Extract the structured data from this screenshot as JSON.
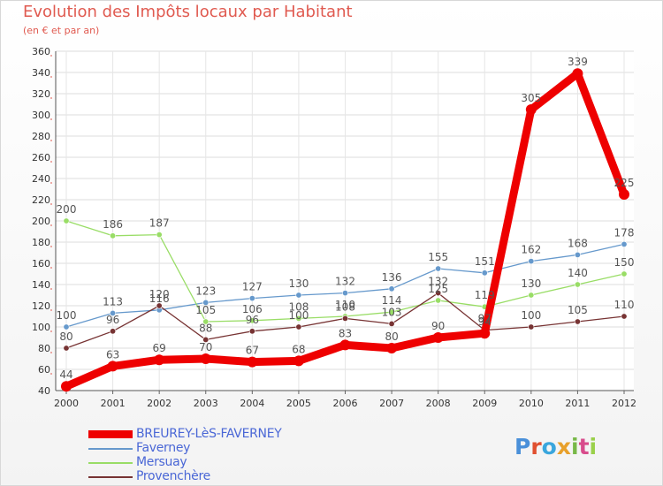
{
  "chart_data": {
    "type": "line",
    "title": "Evolution des Impôts locaux par Habitant",
    "subtitle": "(en € et par an)",
    "xlabel": "",
    "ylabel": "",
    "ylim": [
      40,
      360
    ],
    "ytick_step": 20,
    "grid": true,
    "categories": [
      "2000",
      "2001",
      "2002",
      "2003",
      "2004",
      "2005",
      "2006",
      "2007",
      "2008",
      "2009",
      "2010",
      "2011",
      "2012"
    ],
    "series": [
      {
        "name": "BREUREY-LèS-FAVERNEY",
        "color": "#ee0000",
        "width": 9,
        "values": [
          44,
          63,
          69,
          70,
          67,
          68,
          83,
          80,
          90,
          94,
          305,
          339,
          225
        ]
      },
      {
        "name": "Faverney",
        "color": "#6699cc",
        "width": 1.3,
        "values": [
          100,
          113,
          116,
          123,
          127,
          130,
          132,
          136,
          155,
          151,
          162,
          168,
          178
        ]
      },
      {
        "name": "Mersuay",
        "color": "#99dd66",
        "width": 1.3,
        "values": [
          200,
          186,
          187,
          105,
          106,
          108,
          110,
          114,
          125,
          119,
          130,
          140,
          150
        ]
      },
      {
        "name": "Provenchère",
        "color": "#773333",
        "width": 1.3,
        "values": [
          80,
          96,
          120,
          88,
          96,
          100,
          108,
          103,
          132,
          97,
          100,
          105,
          110
        ]
      }
    ]
  },
  "branding": {
    "letters": [
      "P",
      "r",
      "o",
      "x",
      "i",
      "t",
      "i"
    ],
    "colors": [
      "#4a90d9",
      "#e05030",
      "#3aa6dd",
      "#e8a02a",
      "#78b848",
      "#d84c8c",
      "#9ad04a"
    ]
  }
}
